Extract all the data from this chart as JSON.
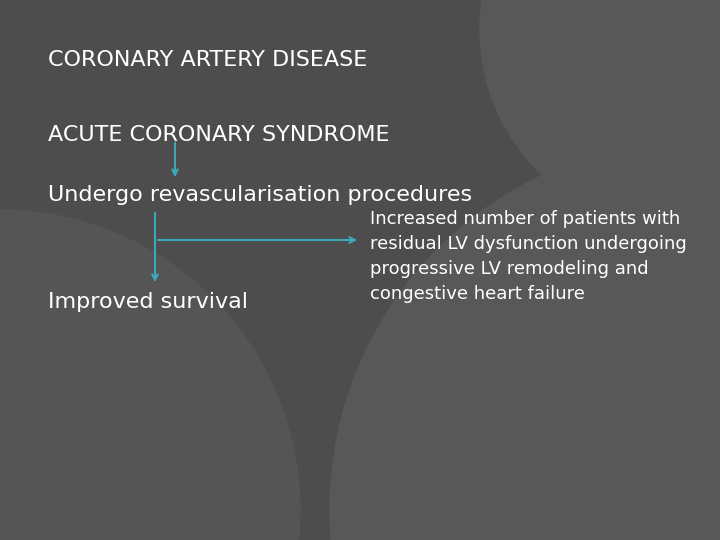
{
  "bg_color": "#4d4d4d",
  "circle1_color": "#585858",
  "circle2_color": "#606060",
  "text_color": "#ffffff",
  "arrow_color": "#3fa8b8",
  "line1": "CORONARY ARTERY DISEASE",
  "line2": "ACUTE CORONARY SYNDROME",
  "line3": "Undergo revascularisation procedures",
  "line4": "Improved survival",
  "line5": "Increased number of patients with\nresidual LV dysfunction undergoing\nprogressive LV remodeling and\ncongestive heart failure",
  "title_fontsize": 16,
  "body_fontsize": 16,
  "small_fontsize": 13,
  "fig_width": 7.2,
  "fig_height": 5.4,
  "dpi": 100
}
